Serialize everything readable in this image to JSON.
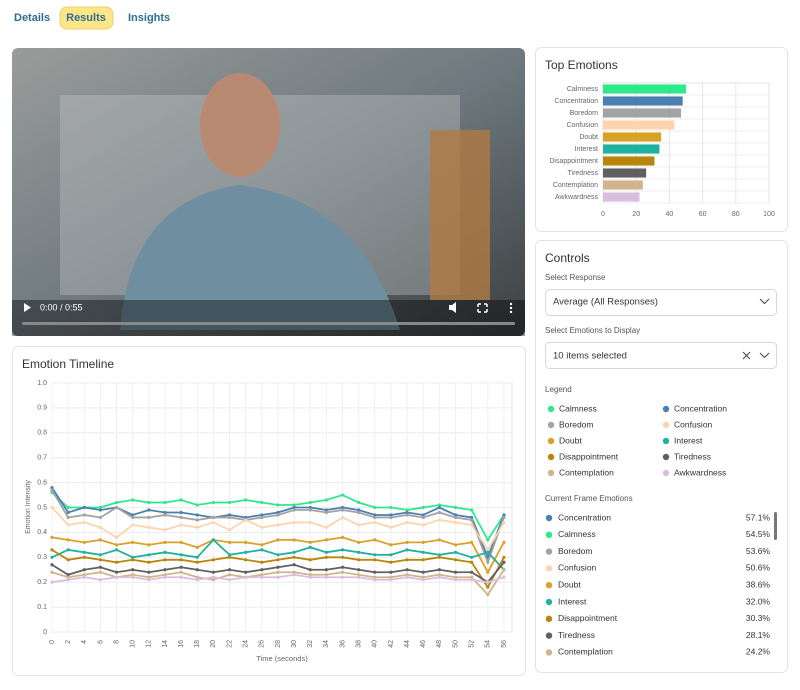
{
  "tabs": [
    "Details",
    "Results",
    "Insights"
  ],
  "video": {
    "time": "0:00 / 0:55"
  },
  "chart_data": [
    {
      "type": "barh",
      "title": "Top Emotions",
      "categories": [
        "Calmness",
        "Concentration",
        "Boredom",
        "Confusion",
        "Doubt",
        "Interest",
        "Disappointment",
        "Tiredness",
        "Contemplation",
        "Awkwardness"
      ],
      "values": [
        50,
        48,
        47,
        43,
        35,
        34,
        31,
        26,
        24,
        22
      ],
      "colors": [
        "#2ee88c",
        "#4a7fb0",
        "#a3a3a3",
        "#fcd5b0",
        "#d9a227",
        "#20b2a0",
        "#b8860b",
        "#606060",
        "#d2b48c",
        "#d8bfe0"
      ],
      "xlim": [
        0,
        100
      ],
      "xticks": [
        0,
        20,
        40,
        60,
        80,
        100
      ],
      "grid": true
    },
    {
      "type": "line",
      "title": "Emotion Timeline",
      "xlabel": "Time (seconds)",
      "ylabel": "Emotion Intensity",
      "x": [
        0,
        2,
        4,
        6,
        8,
        10,
        12,
        14,
        16,
        18,
        20,
        22,
        24,
        26,
        28,
        30,
        32,
        34,
        36,
        38,
        40,
        42,
        44,
        46,
        48,
        50,
        52,
        54,
        56
      ],
      "xlim": [
        0,
        57
      ],
      "xticks": [
        0,
        2,
        4,
        6,
        8,
        10,
        12,
        14,
        16,
        18,
        20,
        22,
        24,
        26,
        28,
        30,
        32,
        34,
        36,
        38,
        40,
        42,
        44,
        46,
        48,
        50,
        52,
        54,
        56
      ],
      "ylim": [
        0,
        1
      ],
      "yticks": [
        0,
        0.1,
        0.2,
        0.3,
        0.4,
        0.5,
        0.6,
        0.7,
        0.8,
        0.9,
        {
          "value": 1,
          "label": "1.0"
        }
      ],
      "grid": true,
      "series": [
        {
          "name": "Calmness",
          "color": "#2ee88c",
          "values": [
            0.56,
            0.5,
            0.5,
            0.5,
            0.52,
            0.53,
            0.52,
            0.52,
            0.53,
            0.51,
            0.52,
            0.52,
            0.53,
            0.52,
            0.51,
            0.51,
            0.52,
            0.53,
            0.55,
            0.52,
            0.5,
            0.5,
            0.49,
            0.5,
            0.51,
            0.5,
            0.49,
            0.37,
            0.47
          ]
        },
        {
          "name": "Concentration",
          "color": "#4a7fb0",
          "values": [
            0.58,
            0.48,
            0.5,
            0.49,
            0.5,
            0.47,
            0.49,
            0.48,
            0.48,
            0.47,
            0.46,
            0.47,
            0.46,
            0.47,
            0.48,
            0.5,
            0.5,
            0.49,
            0.5,
            0.49,
            0.47,
            0.47,
            0.48,
            0.47,
            0.5,
            0.47,
            0.46,
            0.3,
            0.47
          ]
        },
        {
          "name": "Boredom",
          "color": "#a3a3a3",
          "values": [
            0.57,
            0.46,
            0.47,
            0.46,
            0.5,
            0.46,
            0.46,
            0.47,
            0.46,
            0.45,
            0.46,
            0.46,
            0.45,
            0.46,
            0.47,
            0.49,
            0.49,
            0.48,
            0.49,
            0.48,
            0.46,
            0.46,
            0.47,
            0.46,
            0.48,
            0.46,
            0.45,
            0.28,
            0.46
          ]
        },
        {
          "name": "Confusion",
          "color": "#fcd5b0",
          "values": [
            0.5,
            0.43,
            0.44,
            0.42,
            0.38,
            0.43,
            0.42,
            0.41,
            0.43,
            0.42,
            0.44,
            0.41,
            0.45,
            0.42,
            0.43,
            0.44,
            0.44,
            0.42,
            0.46,
            0.43,
            0.44,
            0.42,
            0.44,
            0.43,
            0.45,
            0.44,
            0.43,
            0.33,
            0.44
          ]
        },
        {
          "name": "Doubt",
          "color": "#d9a227",
          "values": [
            0.38,
            0.37,
            0.36,
            0.37,
            0.35,
            0.36,
            0.35,
            0.36,
            0.36,
            0.34,
            0.37,
            0.36,
            0.36,
            0.35,
            0.37,
            0.37,
            0.36,
            0.37,
            0.38,
            0.36,
            0.37,
            0.35,
            0.36,
            0.36,
            0.37,
            0.35,
            0.36,
            0.24,
            0.36
          ]
        },
        {
          "name": "Interest",
          "color": "#20b2a0",
          "values": [
            0.3,
            0.33,
            0.32,
            0.31,
            0.33,
            0.3,
            0.31,
            0.32,
            0.31,
            0.3,
            0.37,
            0.31,
            0.32,
            0.33,
            0.31,
            0.32,
            0.34,
            0.32,
            0.33,
            0.32,
            0.31,
            0.31,
            0.33,
            0.32,
            0.31,
            0.32,
            0.3,
            0.32,
            0.25
          ]
        },
        {
          "name": "Disappointment",
          "color": "#b8860b",
          "values": [
            0.33,
            0.29,
            0.3,
            0.29,
            0.28,
            0.29,
            0.28,
            0.29,
            0.29,
            0.28,
            0.29,
            0.3,
            0.29,
            0.28,
            0.29,
            0.3,
            0.29,
            0.3,
            0.3,
            0.29,
            0.29,
            0.28,
            0.29,
            0.29,
            0.3,
            0.29,
            0.28,
            0.18,
            0.3
          ]
        },
        {
          "name": "Tiredness",
          "color": "#606060",
          "values": [
            0.27,
            0.23,
            0.25,
            0.26,
            0.24,
            0.25,
            0.24,
            0.25,
            0.26,
            0.25,
            0.24,
            0.25,
            0.24,
            0.25,
            0.26,
            0.27,
            0.25,
            0.25,
            0.26,
            0.25,
            0.24,
            0.24,
            0.25,
            0.24,
            0.25,
            0.24,
            0.24,
            0.2,
            0.28
          ]
        },
        {
          "name": "Contemplation",
          "color": "#d2b48c",
          "values": [
            0.24,
            0.22,
            0.23,
            0.24,
            0.22,
            0.23,
            0.22,
            0.23,
            0.24,
            0.22,
            0.21,
            0.23,
            0.22,
            0.23,
            0.24,
            0.24,
            0.23,
            0.23,
            0.24,
            0.23,
            0.22,
            0.22,
            0.23,
            0.22,
            0.23,
            0.22,
            0.22,
            0.15,
            0.25
          ]
        },
        {
          "name": "Awkwardness",
          "color": "#d8bfe0",
          "values": [
            0.2,
            0.21,
            0.22,
            0.21,
            0.22,
            0.22,
            0.21,
            0.22,
            0.22,
            0.21,
            0.22,
            0.21,
            0.22,
            0.22,
            0.22,
            0.23,
            0.22,
            0.22,
            0.22,
            0.22,
            0.21,
            0.21,
            0.22,
            0.21,
            0.22,
            0.21,
            0.21,
            0.2,
            0.22
          ]
        }
      ]
    }
  ],
  "controls": {
    "title": "Controls",
    "response_label": "Select Response",
    "response_value": "Average (All Responses)",
    "emotions_label": "Select Emotions to Display",
    "emotions_value": "10 items selected",
    "legend_title": "Legend"
  },
  "current_frame": {
    "title": "Current Frame Emotions",
    "items": [
      {
        "name": "Concentration",
        "value": "57.1%",
        "color": "#4a7fb0"
      },
      {
        "name": "Calmness",
        "value": "54.5%",
        "color": "#2ee88c"
      },
      {
        "name": "Boredom",
        "value": "53.6%",
        "color": "#a3a3a3"
      },
      {
        "name": "Confusion",
        "value": "50.6%",
        "color": "#fcd5b0"
      },
      {
        "name": "Doubt",
        "value": "38.6%",
        "color": "#d9a227"
      },
      {
        "name": "Interest",
        "value": "32.0%",
        "color": "#20b2a0"
      },
      {
        "name": "Disappointment",
        "value": "30.3%",
        "color": "#b8860b"
      },
      {
        "name": "Tiredness",
        "value": "28.1%",
        "color": "#606060"
      },
      {
        "name": "Contemplation",
        "value": "24.2%",
        "color": "#d2b48c"
      }
    ]
  }
}
